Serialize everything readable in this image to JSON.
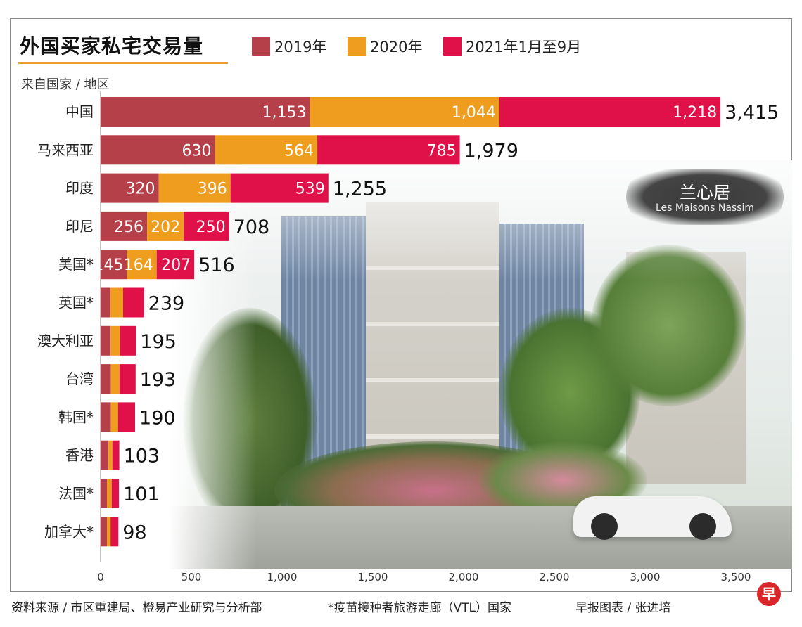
{
  "title": "外国买家私宅交易量",
  "legend": [
    {
      "label": "2019年",
      "color": "#b5404a"
    },
    {
      "label": "2020年",
      "color": "#ee9d1f"
    },
    {
      "label": "2021年1月至9月",
      "color": "#df1148"
    }
  ],
  "photo_label": {
    "zh": "兰心居",
    "en": "Les Maisons Nassim"
  },
  "footer": {
    "source": "资料来源 / 市区重建局、橙易产业研究与分析部",
    "note": "*疫苗接种者旅游走廊（VTL）国家",
    "credit": "早报图表 / 张进培",
    "logo": "早"
  },
  "chart_data": {
    "type": "bar",
    "orientation": "horizontal",
    "stacked": true,
    "ylabel": "来自国家 / 地区",
    "categories": [
      "中国",
      "马来西亚",
      "印度",
      "印尼",
      "美国*",
      "英国*",
      "澳大利亚",
      "台湾",
      "韩国*",
      "香港",
      "法国*",
      "加拿大*"
    ],
    "series": [
      {
        "name": "2019年",
        "color": "#b5404a",
        "values": [
          1153,
          630,
          320,
          256,
          145,
          54,
          55,
          56,
          56,
          43,
          35,
          35
        ],
        "labels": [
          "1,153",
          "630",
          "320",
          "256",
          "145",
          "",
          "",
          "",
          "",
          "",
          "",
          ""
        ]
      },
      {
        "name": "2020年",
        "color": "#ee9d1f",
        "values": [
          1044,
          564,
          396,
          202,
          164,
          70,
          51,
          48,
          40,
          22,
          26,
          20
        ],
        "labels": [
          "1,044",
          "564",
          "396",
          "202",
          "164",
          "",
          "",
          "",
          "",
          "",
          "",
          ""
        ]
      },
      {
        "name": "2021年1月至9月",
        "color": "#df1148",
        "values": [
          1218,
          785,
          539,
          250,
          207,
          115,
          89,
          89,
          94,
          38,
          40,
          43
        ],
        "labels": [
          "1,218",
          "785",
          "539",
          "250",
          "207",
          "",
          "",
          "",
          "",
          "",
          "",
          ""
        ]
      }
    ],
    "totals": [
      "3,415",
      "1,979",
      "1,255",
      "708",
      "516",
      "239",
      "195",
      "193",
      "190",
      "103",
      "101",
      "98"
    ],
    "xlim": [
      0,
      3500
    ],
    "xticks": [
      0,
      500,
      1000,
      1500,
      2000,
      2500,
      3000,
      3500
    ],
    "xtick_labels": [
      "0",
      "500",
      "1,000",
      "1,500",
      "2,000",
      "2,500",
      "3,000",
      "3,500"
    ],
    "grid": false,
    "legend_position": "top"
  }
}
